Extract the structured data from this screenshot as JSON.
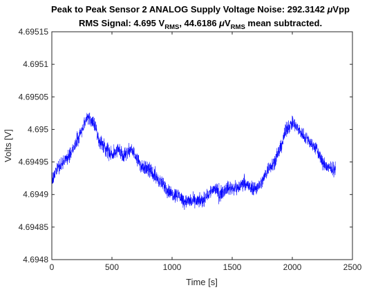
{
  "chart_data": {
    "type": "line",
    "title_line1_prefix": "Peak to Peak Sensor 2 ANALOG Supply Voltage Noise: 292.3142 ",
    "title_line1_mu": "μ",
    "title_line1_suffix": "Vpp",
    "title_line2_a": "RMS Signal: 4.695 V",
    "title_line2_sub1": "RMS",
    "title_line2_b": ", 44.6186 ",
    "title_line2_mu": "μ",
    "title_line2_c": "V",
    "title_line2_sub2": "RMS",
    "title_line2_d": " mean subtracted.",
    "xlabel": "Time [s]",
    "ylabel": "Volts [V]",
    "xlim": [
      0,
      2500
    ],
    "ylim": [
      4.6948,
      4.69515
    ],
    "xticks": [
      0,
      500,
      1000,
      1500,
      2000,
      2500
    ],
    "xtick_labels": [
      "0",
      "500",
      "1000",
      "1500",
      "2000",
      "2500"
    ],
    "yticks": [
      4.6948,
      4.69485,
      4.6949,
      4.69495,
      4.695,
      4.69505,
      4.6951,
      4.69515
    ],
    "ytick_labels": [
      "4.6948",
      "4.69485",
      "4.6949",
      "4.69495",
      "4.695",
      "4.69505",
      "4.6951",
      "4.69515"
    ],
    "grid": false,
    "line_color": "#0000ff",
    "series": [
      {
        "x": [
          0,
          50,
          100,
          150,
          200,
          250,
          300,
          350,
          400,
          450,
          500,
          550,
          600,
          650,
          700,
          750,
          800,
          850,
          900,
          950,
          1000,
          1050,
          1100,
          1150,
          1200,
          1250,
          1300,
          1350,
          1400,
          1450,
          1500,
          1550,
          1600,
          1650,
          1700,
          1750,
          1800,
          1850,
          1900,
          1950,
          2000,
          2050,
          2100,
          2150,
          2200,
          2250,
          2300,
          2360
        ],
        "y": [
          4.69492,
          4.69494,
          4.69495,
          4.69496,
          4.69498,
          4.695,
          4.69502,
          4.69501,
          4.69498,
          4.69497,
          4.69496,
          4.69497,
          4.69496,
          4.69497,
          4.69496,
          4.69494,
          4.69494,
          4.69493,
          4.69492,
          4.69491,
          4.6949,
          4.6949,
          4.69489,
          4.69489,
          4.69489,
          4.69489,
          4.6949,
          4.69491,
          4.6949,
          4.69491,
          4.69491,
          4.69491,
          4.69492,
          4.69491,
          4.69491,
          4.69492,
          4.69494,
          4.69495,
          4.69497,
          4.695,
          4.69501,
          4.695,
          4.69499,
          4.69498,
          4.69497,
          4.69495,
          4.69494,
          4.69494
        ]
      }
    ]
  }
}
